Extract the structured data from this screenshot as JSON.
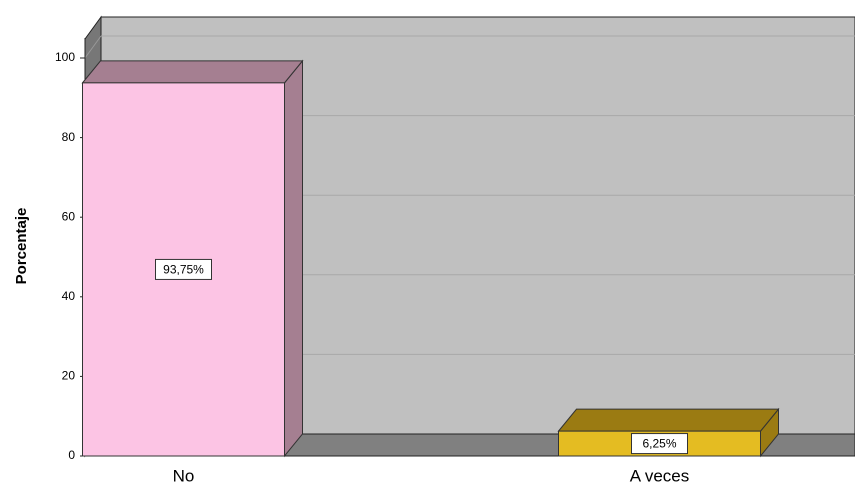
{
  "chart_data": {
    "type": "bar3d",
    "ylabel": "Porcentaje",
    "categories": [
      "No",
      "A veces"
    ],
    "values": [
      93.75,
      6.25
    ],
    "value_labels": [
      "93,75%",
      "6,25%"
    ],
    "colors": [
      "#fcc4e4",
      "#e4bc22"
    ],
    "side_colors": [
      "#a57f91",
      "#9b7b12"
    ],
    "ylim": [
      0,
      100
    ],
    "yticks": [
      0,
      20,
      40,
      60,
      80,
      100
    ],
    "grid": true
  }
}
